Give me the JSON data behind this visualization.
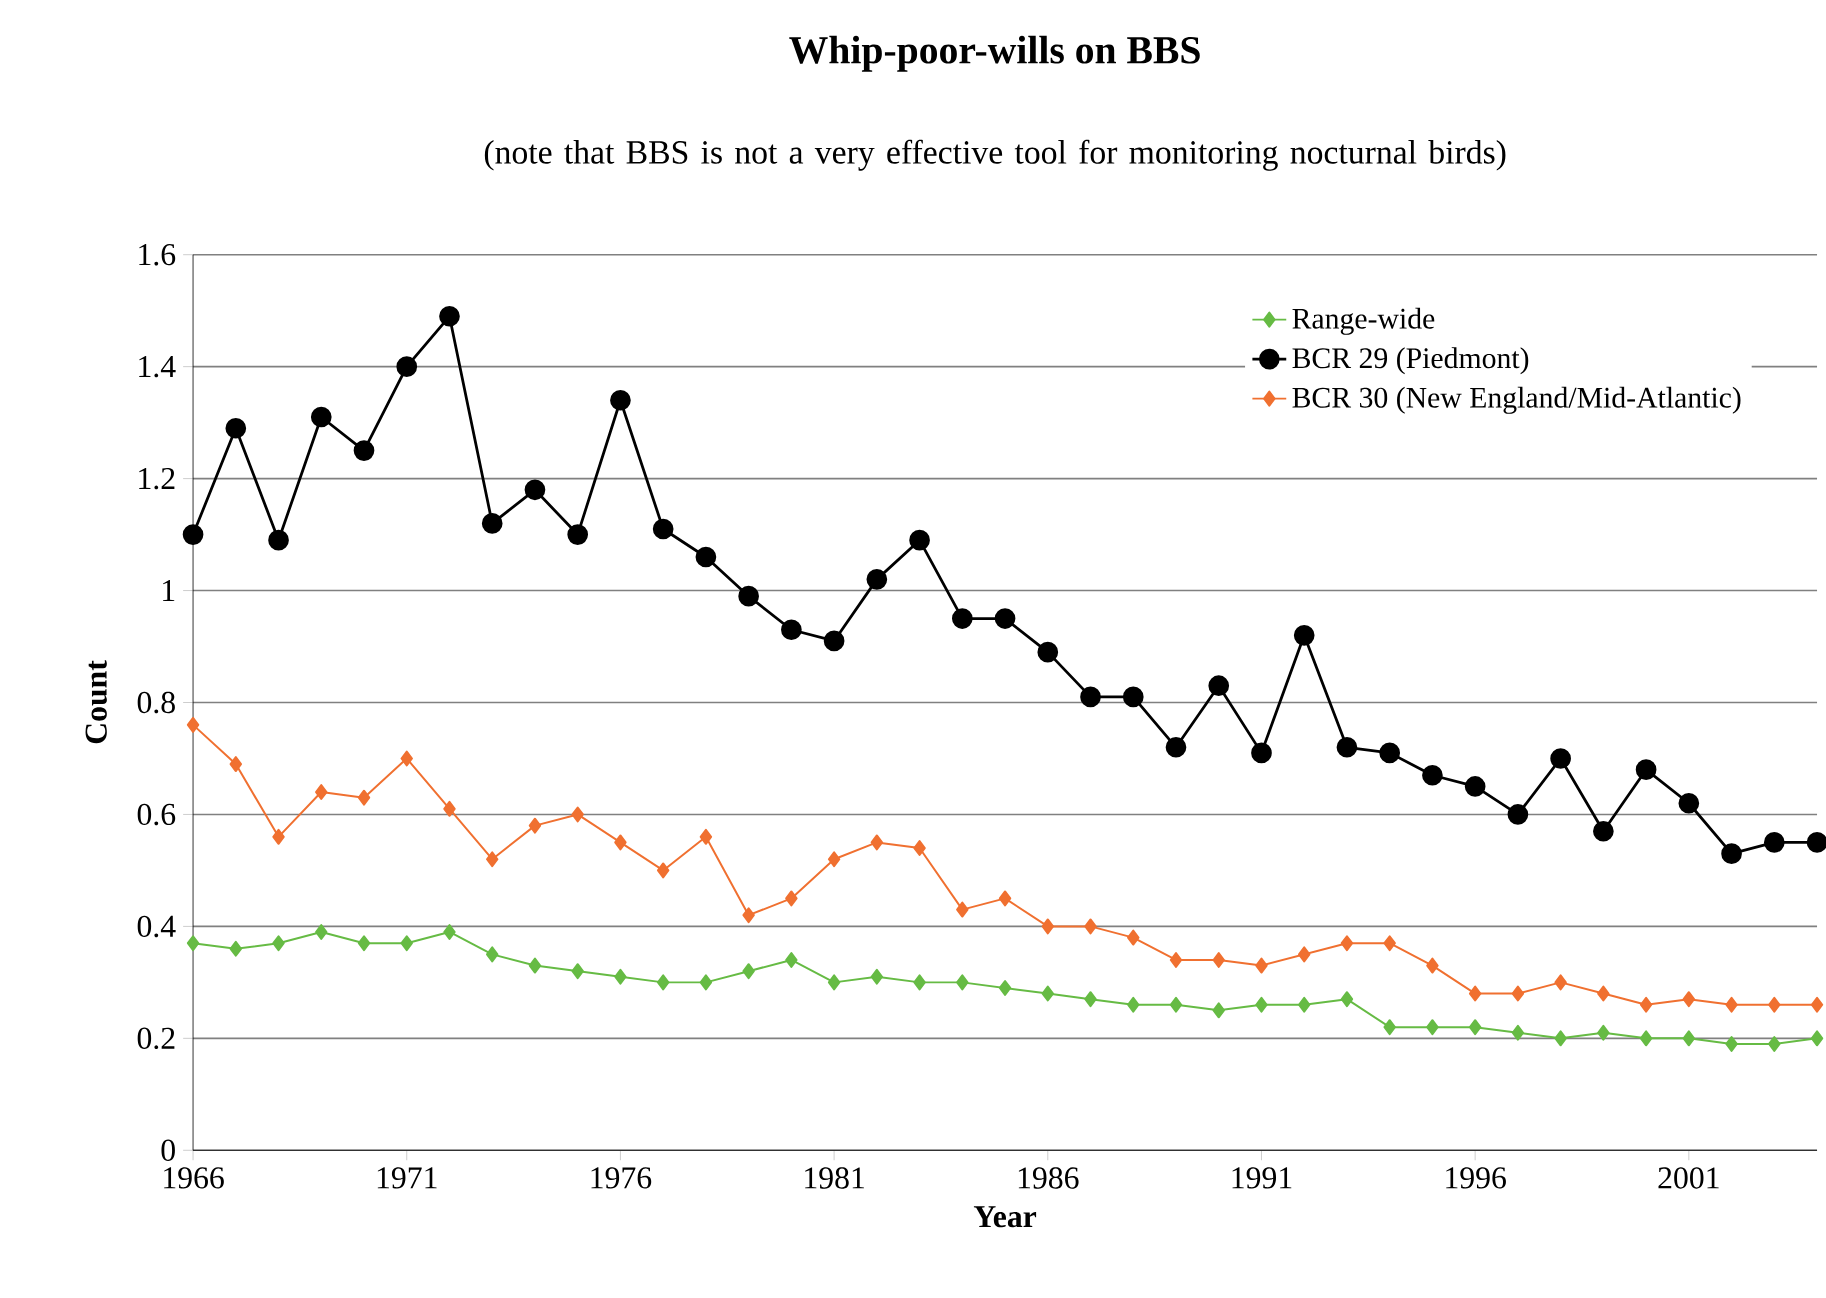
{
  "chart_data": {
    "type": "line",
    "title": "Whip-poor-wills on BBS",
    "subtitle": "(note that BBS is not a very effective tool for monitoring nocturnal birds)",
    "xlabel": "Year",
    "ylabel": "Count",
    "x": [
      1966,
      1967,
      1968,
      1969,
      1970,
      1971,
      1972,
      1973,
      1974,
      1975,
      1976,
      1977,
      1978,
      1979,
      1980,
      1981,
      1982,
      1983,
      1984,
      1985,
      1986,
      1987,
      1988,
      1989,
      1990,
      1991,
      1992,
      1993,
      1994,
      1995,
      1996,
      1997,
      1998,
      1999,
      2000,
      2001,
      2002,
      2003,
      2004
    ],
    "xlim": [
      1966,
      2004
    ],
    "xticks": [
      1966,
      1971,
      1976,
      1981,
      1986,
      1991,
      1996,
      2001
    ],
    "ylim": [
      0,
      1.6
    ],
    "yticks": [
      0,
      0.2,
      0.4,
      0.6,
      0.8,
      1,
      1.2,
      1.4,
      1.6
    ],
    "grid": "y",
    "legend": "top right",
    "line_style": "solid",
    "series": [
      {
        "name": "Range-wide",
        "color": "#66bb44",
        "marker": "diamond",
        "values": [
          0.37,
          0.36,
          0.37,
          0.39,
          0.37,
          0.37,
          0.39,
          0.35,
          0.33,
          0.32,
          0.31,
          0.3,
          0.3,
          0.32,
          0.34,
          0.3,
          0.31,
          0.3,
          0.3,
          0.29,
          0.28,
          0.27,
          0.26,
          0.26,
          0.25,
          0.26,
          0.26,
          0.27,
          0.22,
          0.22,
          0.22,
          0.21,
          0.2,
          0.21,
          0.2,
          0.2,
          0.19,
          0.19,
          0.2
        ]
      },
      {
        "name": "BCR 29 (Piedmont)",
        "color": "#000000",
        "marker": "circle",
        "values": [
          1.1,
          1.29,
          1.09,
          1.31,
          1.25,
          1.4,
          1.49,
          1.12,
          1.18,
          1.1,
          1.34,
          1.11,
          1.06,
          0.99,
          0.93,
          0.91,
          1.02,
          1.09,
          0.95,
          0.95,
          0.89,
          0.81,
          0.81,
          0.72,
          0.83,
          0.71,
          0.92,
          0.72,
          0.71,
          0.67,
          0.65,
          0.6,
          0.7,
          0.57,
          0.68,
          0.62,
          0.53,
          0.55,
          0.55
        ]
      },
      {
        "name": "BCR 30 (New England/Mid-Atlantic)",
        "color": "#f07030",
        "marker": "diamond",
        "values": [
          0.76,
          0.69,
          0.56,
          0.64,
          0.63,
          0.7,
          0.61,
          0.52,
          0.58,
          0.6,
          0.55,
          0.5,
          0.56,
          0.42,
          0.45,
          0.52,
          0.55,
          0.54,
          0.43,
          0.45,
          0.4,
          0.4,
          0.38,
          0.34,
          0.34,
          0.33,
          0.35,
          0.37,
          0.37,
          0.33,
          0.28,
          0.28,
          0.3,
          0.28,
          0.26,
          0.27,
          0.26,
          0.26,
          0.26
        ]
      }
    ]
  }
}
